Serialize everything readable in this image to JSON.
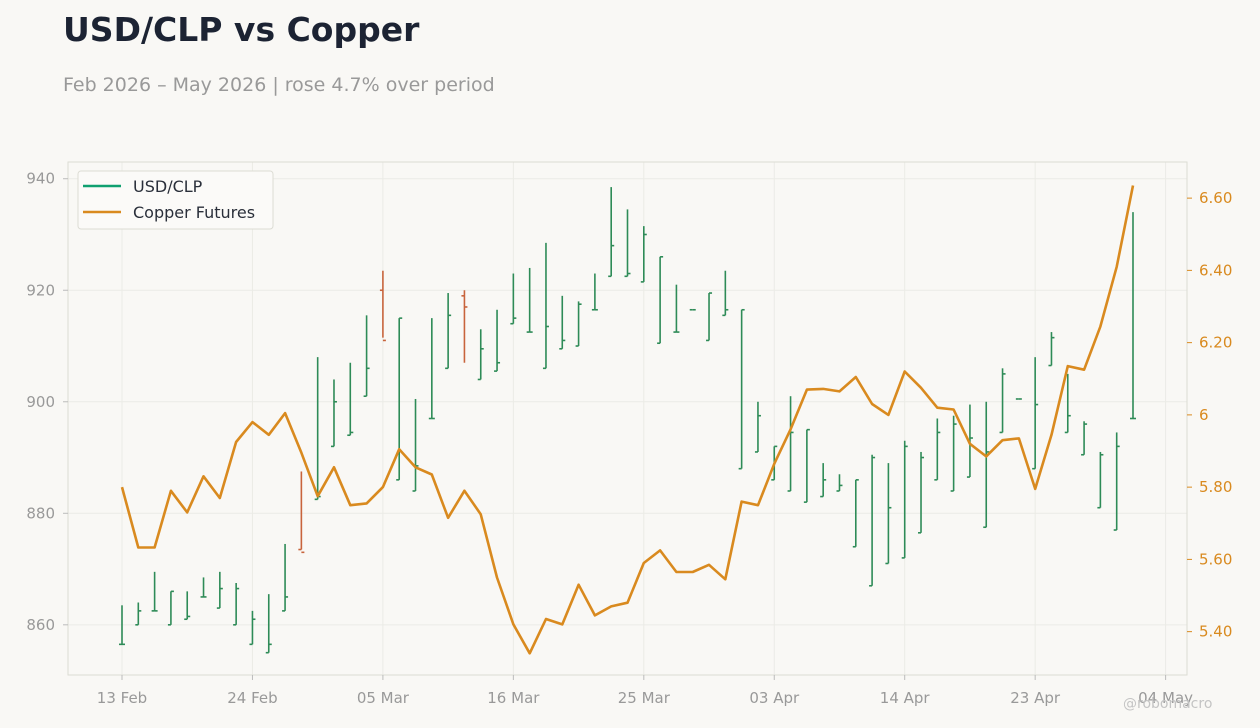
{
  "header": {
    "title": "USD/CLP vs Copper",
    "subtitle": "Feb 2026 – May 2026 | rose 4.7% over period"
  },
  "credit": "@robomacro",
  "colors": {
    "up": "#2e8b57",
    "down": "#c8643c",
    "copper": "#d98a1f",
    "legend_usd": "#10a070"
  },
  "chart_data": {
    "type": "line",
    "x_tick_labels": [
      "13 Feb",
      "24 Feb",
      "05 Mar",
      "16 Mar",
      "25 Mar",
      "03 Apr",
      "14 Apr",
      "23 Apr",
      "04 May"
    ],
    "y_left": {
      "ticks": [
        860,
        880,
        900,
        920,
        940
      ],
      "range": [
        851,
        943
      ]
    },
    "y_right": {
      "ticks": [
        5.4,
        5.6,
        5.8,
        6.0,
        6.2,
        6.4,
        6.6
      ],
      "tick_labels": [
        "5.40",
        "5.60",
        "5.80",
        "6",
        "6.20",
        "6.40",
        "6.60"
      ],
      "range": [
        5.28,
        6.7
      ]
    },
    "grid": true,
    "legend": {
      "position": "top-left",
      "entries": [
        "USD/CLP",
        "Copper Futures"
      ]
    },
    "series": [
      {
        "name": "USD/CLP",
        "type": "ohlc",
        "axis": "left",
        "ohlc": [
          [
            856.5,
            863.5,
            856.5,
            856.5
          ],
          [
            860,
            864,
            860,
            862.5
          ],
          [
            862.5,
            869.5,
            862.5,
            862.5
          ],
          [
            860,
            866,
            860,
            866
          ],
          [
            861,
            866,
            861,
            861.5
          ],
          [
            865,
            868.5,
            865,
            865
          ],
          [
            863,
            869.5,
            863,
            866.5
          ],
          [
            860,
            867.5,
            860,
            866.5
          ],
          [
            856.5,
            862.5,
            856.5,
            861
          ],
          [
            855,
            865.5,
            855,
            856.5
          ],
          [
            862.5,
            874.5,
            862.5,
            865
          ],
          [
            873.5,
            887.5,
            873.5,
            873
          ],
          [
            882.5,
            908,
            882.5,
            883
          ],
          [
            892,
            904,
            892,
            900
          ],
          [
            894,
            907,
            894,
            894.5
          ],
          [
            901,
            915.5,
            901,
            906
          ],
          [
            920,
            923.5,
            911.5,
            911
          ],
          [
            886,
            915,
            886,
            915
          ],
          [
            884,
            900.5,
            884,
            888.5
          ],
          [
            897,
            915,
            897,
            897
          ],
          [
            906,
            919.5,
            906,
            915.5
          ],
          [
            919,
            920,
            907,
            917
          ],
          [
            904,
            913,
            904,
            909.5
          ],
          [
            905.5,
            916.5,
            905.5,
            907
          ],
          [
            914,
            923,
            914,
            915
          ],
          [
            912.5,
            924,
            912.5,
            912.5
          ],
          [
            906,
            928.5,
            906,
            913.5
          ],
          [
            909.5,
            919,
            909.5,
            911
          ],
          [
            910,
            918,
            910,
            917.5
          ],
          [
            916.5,
            923,
            916.5,
            916.5
          ],
          [
            922.5,
            938.5,
            922.5,
            928
          ],
          [
            922.5,
            934.5,
            922.5,
            923
          ],
          [
            921.5,
            931.5,
            921.5,
            930
          ],
          [
            910.5,
            926,
            910.5,
            926
          ],
          [
            912.5,
            921,
            912.5,
            912.5
          ],
          [
            916.5,
            916.5,
            916.5,
            916.5
          ],
          [
            911,
            919.5,
            911,
            919.5
          ],
          [
            915.5,
            923.5,
            915.5,
            916.5
          ],
          [
            888,
            916.5,
            888,
            916.5
          ],
          [
            891,
            900,
            891,
            897.5
          ],
          [
            886,
            892,
            886,
            892
          ],
          [
            884,
            901,
            884,
            894.5
          ],
          [
            882,
            895,
            882,
            895
          ],
          [
            883,
            889,
            883,
            886
          ],
          [
            884,
            887,
            884,
            885
          ],
          [
            874,
            886,
            874,
            886
          ],
          [
            867,
            890.5,
            867,
            890
          ],
          [
            871,
            889,
            871,
            881
          ],
          [
            872,
            893,
            872,
            892
          ],
          [
            876.5,
            891,
            876.5,
            890
          ],
          [
            886,
            897,
            886,
            894.5
          ],
          [
            884,
            897.5,
            884,
            896
          ],
          [
            886.5,
            899.5,
            886.5,
            893.5
          ],
          [
            877.5,
            900,
            877.5,
            891
          ],
          [
            894.5,
            906,
            894.5,
            905
          ],
          [
            900.5,
            900.5,
            900.5,
            900.5
          ],
          [
            888,
            908,
            888,
            899.5
          ],
          [
            906.5,
            912.5,
            906.5,
            911.5
          ],
          [
            894.5,
            905,
            894.5,
            897.5
          ],
          [
            890.5,
            896.5,
            890.5,
            896
          ],
          [
            881,
            891,
            881,
            890.5
          ],
          [
            877,
            894.5,
            877,
            892
          ],
          [
            897,
            934,
            897,
            897
          ]
        ]
      },
      {
        "name": "Copper Futures",
        "type": "line",
        "axis": "right",
        "values": [
          5.8,
          5.633,
          5.633,
          5.79,
          5.73,
          5.83,
          5.77,
          5.925,
          5.98,
          5.945,
          6.005,
          5.895,
          5.775,
          5.855,
          5.75,
          5.755,
          5.8,
          5.905,
          5.855,
          5.835,
          5.715,
          5.79,
          5.725,
          5.55,
          5.42,
          5.34,
          5.435,
          5.42,
          5.53,
          5.445,
          5.47,
          5.48,
          5.59,
          5.625,
          5.565,
          5.565,
          5.585,
          5.545,
          5.76,
          5.75,
          5.865,
          5.96,
          6.07,
          6.072,
          6.065,
          6.105,
          6.03,
          6.0,
          6.12,
          6.075,
          6.02,
          6.015,
          5.92,
          5.885,
          5.93,
          5.935,
          5.795,
          5.945,
          6.135,
          6.125,
          6.245,
          6.41,
          6.635
        ]
      }
    ]
  }
}
